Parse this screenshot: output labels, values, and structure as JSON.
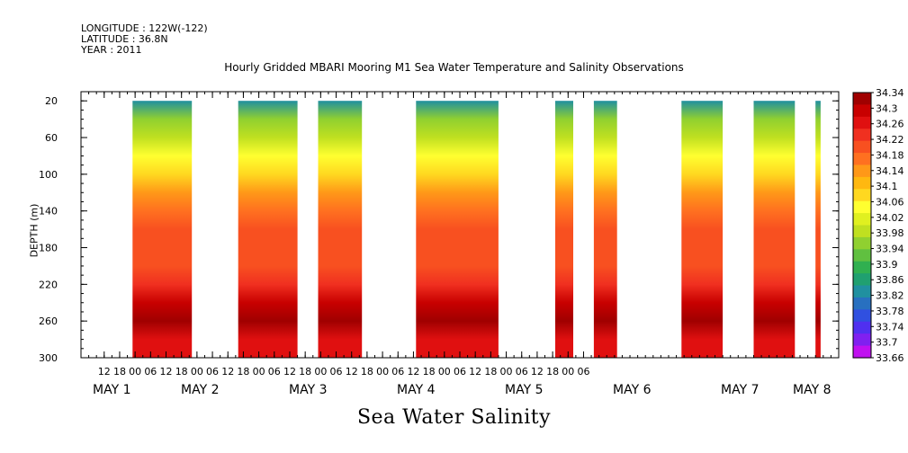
{
  "header": {
    "longitude": "LONGITUDE : 122W(-122)",
    "latitude": "LATITUDE : 36.8N",
    "year": "YEAR : 2011"
  },
  "chart_data": {
    "type": "heatmap",
    "title": "Hourly Gridded MBARI Mooring M1 Sea Water Temperature and Salinity Observations",
    "xlabel": "Sea Water Salinity",
    "ylabel": "DEPTH (m)",
    "ylim": [
      300,
      10
    ],
    "y_ticks": [
      20,
      60,
      100,
      140,
      180,
      220,
      260,
      300
    ],
    "x_hour_ticks": [
      "12",
      "18",
      "00",
      "06",
      "12",
      "18",
      "00",
      "06",
      "12",
      "18",
      "00",
      "06",
      "12",
      "18",
      "00",
      "06",
      "12",
      "18",
      "00",
      "06",
      "12",
      "18",
      "00",
      "06",
      "12",
      "18",
      "00",
      "06",
      "12",
      "18",
      "00",
      "06"
    ],
    "x_day_labels": [
      "MAY  1",
      "MAY  2",
      "MAY  3",
      "MAY  4",
      "MAY  5",
      "MAY  6",
      "MAY  7",
      "MAY  8"
    ],
    "colorbar_levels": [
      "34.34",
      "34.3",
      "34.26",
      "34.22",
      "34.18",
      "34.14",
      "34.1",
      "34.06",
      "34.02",
      "33.98",
      "33.94",
      "33.9",
      "33.86",
      "33.82",
      "33.78",
      "33.74",
      "33.7",
      "33.66"
    ],
    "colorbar_colors": [
      "#a00000",
      "#c80000",
      "#e01010",
      "#f03020",
      "#f85020",
      "#ff7020",
      "#ff9818",
      "#ffb810",
      "#ffd820",
      "#ffff30",
      "#e0f020",
      "#c0e020",
      "#90d030",
      "#60c040",
      "#30b050",
      "#20a070",
      "#2090a0",
      "#2870c0",
      "#3050e0",
      "#5030f0",
      "#8020f0",
      "#c010f0"
    ],
    "data_blocks_hours": [
      [
        20,
        43
      ],
      [
        61,
        84
      ],
      [
        92,
        109
      ],
      [
        130,
        162
      ],
      [
        184,
        191
      ],
      [
        199,
        208
      ],
      [
        233,
        249
      ],
      [
        261,
        277
      ],
      [
        285,
        287
      ]
    ],
    "depth_profile": [
      {
        "depth": 20,
        "salinity": 33.84
      },
      {
        "depth": 40,
        "salinity": 33.94
      },
      {
        "depth": 60,
        "salinity": 34.0
      },
      {
        "depth": 80,
        "salinity": 34.05
      },
      {
        "depth": 100,
        "salinity": 34.09
      },
      {
        "depth": 120,
        "salinity": 34.13
      },
      {
        "depth": 140,
        "salinity": 34.17
      },
      {
        "depth": 160,
        "salinity": 34.2
      },
      {
        "depth": 180,
        "salinity": 34.19
      },
      {
        "depth": 200,
        "salinity": 34.2
      },
      {
        "depth": 220,
        "salinity": 34.23
      },
      {
        "depth": 240,
        "salinity": 34.28
      },
      {
        "depth": 260,
        "salinity": 34.32
      },
      {
        "depth": 280,
        "salinity": 34.27
      },
      {
        "depth": 300,
        "salinity": 34.25
      }
    ]
  }
}
